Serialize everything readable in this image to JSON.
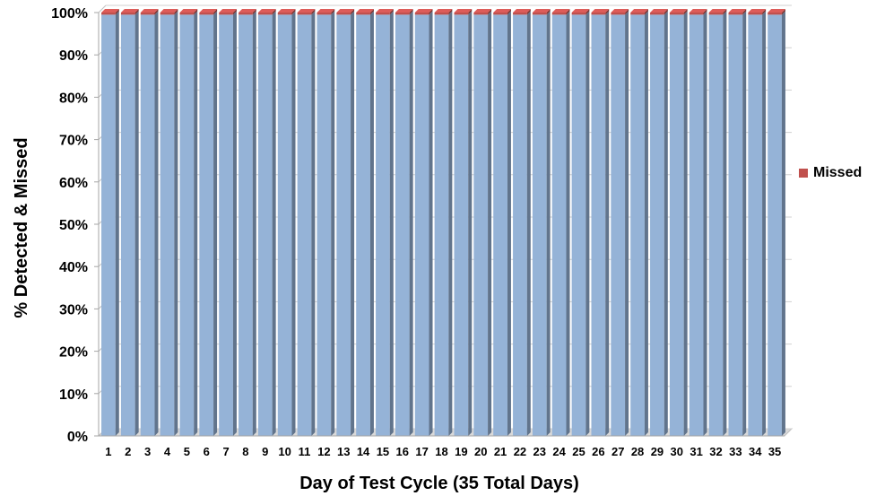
{
  "chart_data": {
    "type": "bar",
    "stacked": true,
    "percent_stacked": true,
    "title": "",
    "xlabel": "Day of Test Cycle (35 Total Days)",
    "ylabel": "% Detected & Missed",
    "categories": [
      "1",
      "2",
      "3",
      "4",
      "5",
      "6",
      "7",
      "8",
      "9",
      "10",
      "11",
      "12",
      "13",
      "14",
      "15",
      "16",
      "17",
      "18",
      "19",
      "20",
      "21",
      "22",
      "23",
      "24",
      "25",
      "26",
      "27",
      "28",
      "29",
      "30",
      "31",
      "32",
      "33",
      "34",
      "35"
    ],
    "series": [
      {
        "values": [
          99.5,
          99.5,
          99.5,
          99.5,
          99.5,
          99.5,
          99.5,
          99.5,
          99.5,
          99.5,
          99.5,
          99.5,
          99.5,
          99.5,
          99.5,
          99.5,
          99.5,
          99.5,
          99.5,
          99.5,
          99.5,
          99.5,
          99.5,
          99.5,
          99.5,
          99.5,
          99.5,
          99.5,
          99.5,
          99.5,
          99.5,
          99.5,
          99.5,
          99.5,
          99.5
        ],
        "color": "#95b3d7"
      },
      {
        "name": "Missed",
        "values": [
          0.5,
          0.5,
          0.5,
          0.5,
          0.5,
          0.5,
          0.5,
          0.5,
          0.5,
          0.5,
          0.5,
          0.5,
          0.5,
          0.5,
          0.5,
          0.5,
          0.5,
          0.5,
          0.5,
          0.5,
          0.5,
          0.5,
          0.5,
          0.5,
          0.5,
          0.5,
          0.5,
          0.5,
          0.5,
          0.5,
          0.5,
          0.5,
          0.5,
          0.5,
          0.5
        ],
        "color": "#c0504d"
      }
    ],
    "ylim": [
      0,
      100
    ],
    "yticks": [
      "0%",
      "10%",
      "20%",
      "30%",
      "40%",
      "50%",
      "60%",
      "70%",
      "80%",
      "90%",
      "100%"
    ],
    "grid": true,
    "legend_position": "right"
  }
}
